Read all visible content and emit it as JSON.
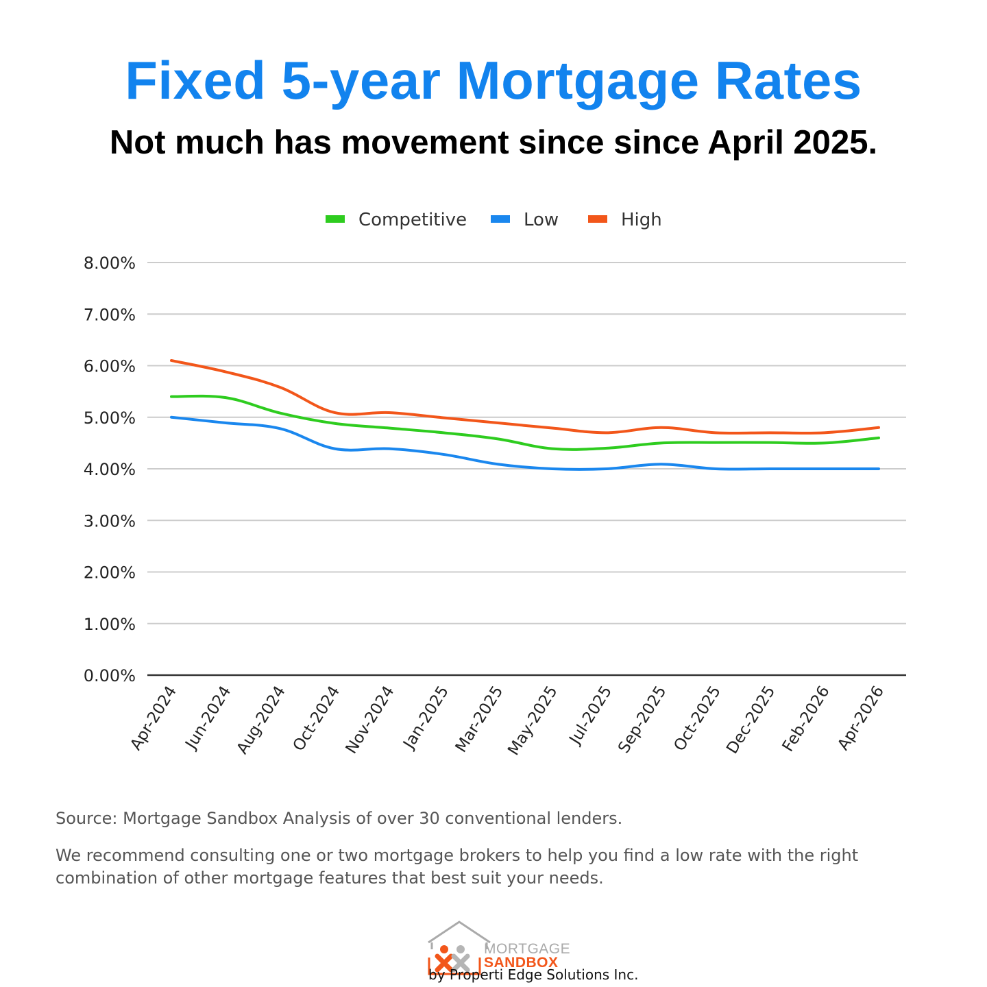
{
  "header": {
    "title": "Fixed 5-year Mortgage Rates",
    "subtitle": "Not much has movement since since April 2025."
  },
  "chart_data": {
    "type": "line",
    "title": "",
    "xlabel": "",
    "ylabel": "",
    "ylim": [
      0,
      8
    ],
    "yticks": [
      "0.00%",
      "1.00%",
      "2.00%",
      "3.00%",
      "4.00%",
      "5.00%",
      "6.00%",
      "7.00%",
      "8.00%"
    ],
    "grid": true,
    "legend_position": "top-center",
    "categories": [
      "Apr-2024",
      "Jun-2024",
      "Aug-2024",
      "Oct-2024",
      "Nov-2024",
      "Jan-2025",
      "Mar-2025",
      "May-2025",
      "Jul-2025",
      "Sep-2025",
      "Oct-2025",
      "Dec-2025",
      "Feb-2026",
      "Apr-2026"
    ],
    "series": [
      {
        "name": "Competitive",
        "color": "#2ecc1f",
        "values": [
          5.4,
          5.38,
          5.08,
          4.88,
          4.79,
          4.7,
          4.58,
          4.39,
          4.4,
          4.5,
          4.51,
          4.51,
          4.5,
          4.6
        ]
      },
      {
        "name": "Low",
        "color": "#1a87ee",
        "values": [
          5.0,
          4.89,
          4.78,
          4.39,
          4.39,
          4.28,
          4.09,
          4.0,
          4.0,
          4.09,
          4.0,
          4.0,
          4.0,
          4.0
        ]
      },
      {
        "name": "High",
        "color": "#f2561a",
        "values": [
          6.1,
          5.88,
          5.58,
          5.09,
          5.09,
          4.99,
          4.89,
          4.79,
          4.7,
          4.8,
          4.7,
          4.7,
          4.7,
          4.8
        ]
      }
    ]
  },
  "footer": {
    "source": "Source: Mortgage Sandbox Analysis of over 30 conventional lenders.",
    "advice": "We recommend consulting one or two mortgage brokers to help you find a low rate with the right combination of other mortgage features that best suit your needs.",
    "logo_line1": "MORTGAGE",
    "logo_line2": "SANDBOX",
    "byline": "by Properti Edge Solutions Inc."
  },
  "colors": {
    "title": "#1283ee",
    "gridline": "#cccccc",
    "axis": "#333333"
  }
}
